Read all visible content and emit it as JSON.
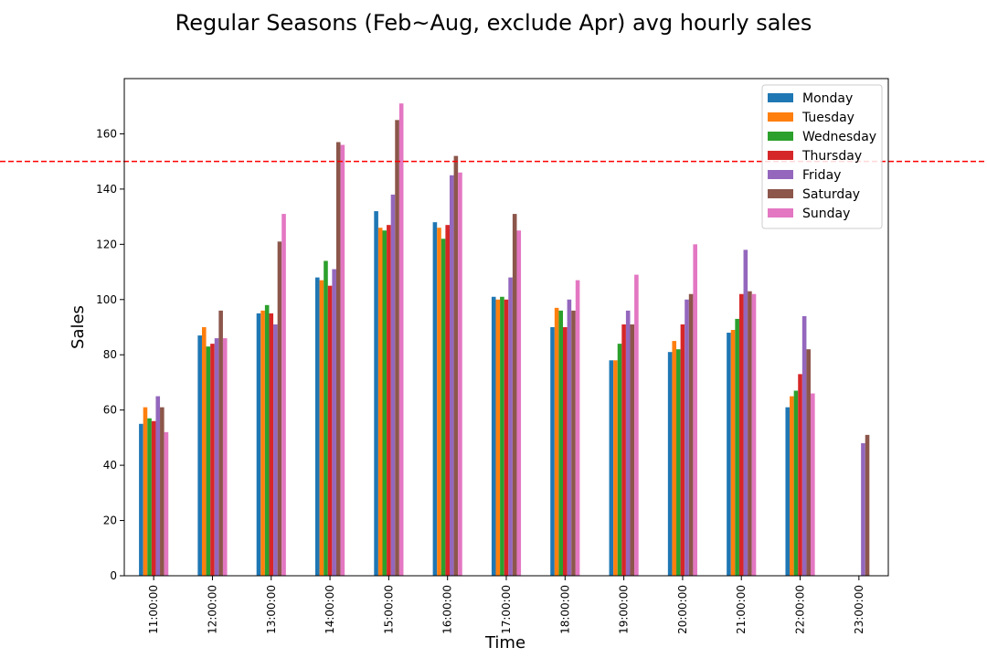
{
  "chart_data": {
    "type": "bar",
    "title": "Regular Seasons (Feb~Aug, exclude Apr) avg hourly sales",
    "xlabel": "Time",
    "ylabel": "Sales",
    "ylim": [
      0,
      180
    ],
    "yticks": [
      0,
      20,
      40,
      60,
      80,
      100,
      120,
      140,
      160
    ],
    "categories": [
      "11:00:00",
      "12:00:00",
      "13:00:00",
      "14:00:00",
      "15:00:00",
      "16:00:00",
      "17:00:00",
      "18:00:00",
      "19:00:00",
      "20:00:00",
      "21:00:00",
      "22:00:00",
      "23:00:00"
    ],
    "reference_line": {
      "value": 150,
      "color": "#ff0000",
      "style": "dashed"
    },
    "legend": {
      "placement": "top-right"
    },
    "grid": false,
    "series": [
      {
        "name": "Monday",
        "color": "#1f77b4",
        "values": [
          55,
          87,
          95,
          108,
          132,
          128,
          101,
          90,
          78,
          81,
          88,
          61,
          null
        ]
      },
      {
        "name": "Tuesday",
        "color": "#ff7f0e",
        "values": [
          61,
          90,
          96,
          107,
          126,
          126,
          100,
          97,
          78,
          85,
          89,
          65,
          null
        ]
      },
      {
        "name": "Wednesday",
        "color": "#2ca02c",
        "values": [
          57,
          83,
          98,
          114,
          125,
          122,
          101,
          96,
          84,
          82,
          93,
          67,
          null
        ]
      },
      {
        "name": "Thursday",
        "color": "#d62728",
        "values": [
          56,
          84,
          95,
          105,
          127,
          127,
          100,
          90,
          91,
          91,
          102,
          73,
          null
        ]
      },
      {
        "name": "Friday",
        "color": "#9467bd",
        "values": [
          65,
          86,
          91,
          111,
          138,
          145,
          108,
          100,
          96,
          100,
          118,
          94,
          48
        ]
      },
      {
        "name": "Saturday",
        "color": "#8c564b",
        "values": [
          61,
          96,
          121,
          157,
          165,
          152,
          131,
          96,
          91,
          102,
          103,
          82,
          51
        ]
      },
      {
        "name": "Sunday",
        "color": "#e377c2",
        "values": [
          52,
          86,
          131,
          156,
          171,
          146,
          125,
          107,
          109,
          120,
          102,
          66,
          null
        ]
      }
    ]
  }
}
